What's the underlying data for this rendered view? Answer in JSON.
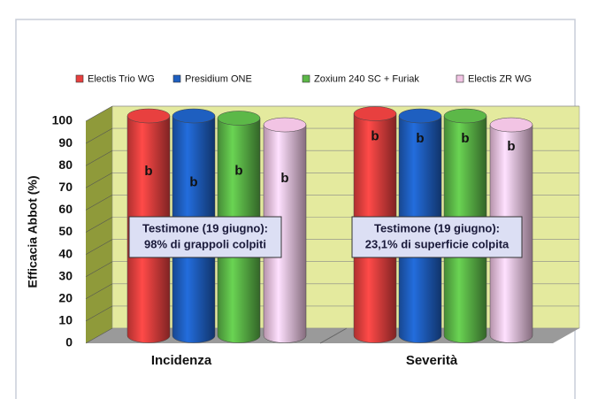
{
  "chart_data": {
    "type": "bar3d",
    "y_label": "Efficacia Abbot (%)",
    "categories": [
      "Incidenza",
      "Severità"
    ],
    "series": [
      {
        "name": "Electis Trio WG",
        "color": "#e8403f",
        "values": [
          99,
          100
        ],
        "labels": [
          "b",
          "b"
        ]
      },
      {
        "name": "Presidium ONE",
        "color": "#1e5fc0",
        "values": [
          99,
          99
        ],
        "labels": [
          "b",
          "b"
        ]
      },
      {
        "name": "Zoxium 240 SC + Furiak",
        "color": "#5cb848",
        "values": [
          98,
          99
        ],
        "labels": [
          "b",
          "b"
        ]
      },
      {
        "name": "Electis ZR WG",
        "color": "#f2c4e4",
        "values": [
          95,
          95
        ],
        "labels": [
          "b",
          "b"
        ]
      }
    ],
    "annotations": [
      [
        "Testimone (19 giugno):",
        "98% di grappoli colpiti"
      ],
      [
        "Testimone (19 giugno):",
        "23,1% di superficie colpita"
      ]
    ],
    "ylim": [
      0,
      100
    ],
    "yticks": [
      0,
      10,
      20,
      30,
      40,
      50,
      60,
      70,
      80,
      90,
      100
    ],
    "grid": true
  }
}
